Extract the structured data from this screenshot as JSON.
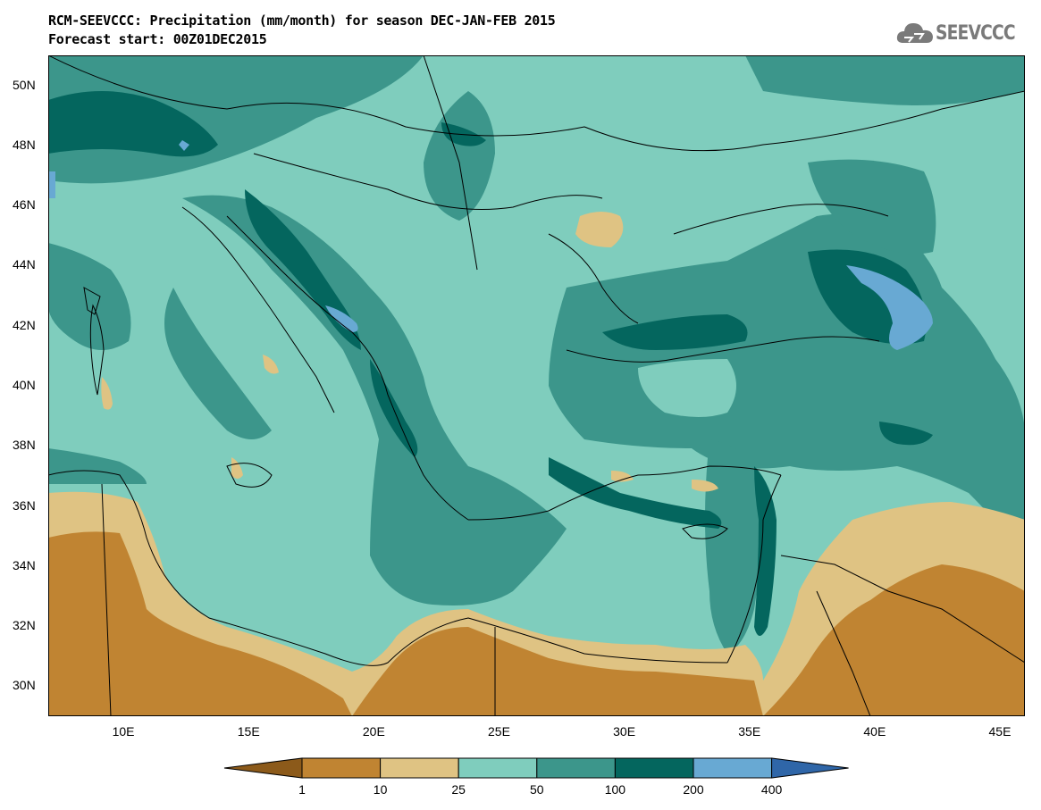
{
  "header": {
    "title_line1": "RCM-SEEVCCC: Precipitation (mm/month) for season DEC-JAN-FEB 2015",
    "title_line2": "Forecast start: 00Z01DEC2015",
    "logo_text": "SEEVCCC",
    "logo_icon": "cloud-icon"
  },
  "map": {
    "lon_range": [
      7,
      46
    ],
    "lat_range": [
      29,
      51
    ],
    "lat_ticks": [
      "50N",
      "48N",
      "46N",
      "44N",
      "42N",
      "40N",
      "38N",
      "36N",
      "34N",
      "32N",
      "30N"
    ],
    "lon_ticks": [
      "10E",
      "15E",
      "20E",
      "25E",
      "30E",
      "35E",
      "40E",
      "45E"
    ],
    "lat_values": [
      50,
      48,
      46,
      44,
      42,
      40,
      38,
      36,
      34,
      32,
      30
    ],
    "lon_values": [
      10,
      15,
      20,
      25,
      30,
      35,
      40,
      45
    ]
  },
  "legend": {
    "thresholds": [
      "1",
      "10",
      "25",
      "50",
      "100",
      "200",
      "400"
    ],
    "colors": [
      "#8c5a1a",
      "#c08432",
      "#dfc383",
      "#7fcdbd",
      "#3c968b",
      "#04665e",
      "#68a9d3",
      "#2f66a8"
    ]
  }
}
